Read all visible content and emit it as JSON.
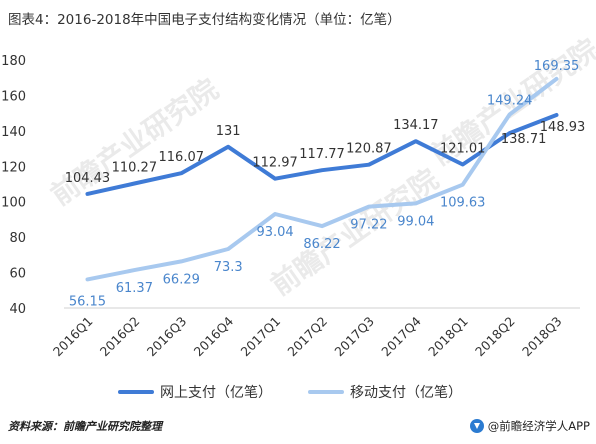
{
  "title": "图表4：2016-2018年中国电子支付结构变化情况（单位：亿笔）",
  "footer": {
    "source": "资料来源：前瞻产业研究院整理",
    "brand": "@前瞻经济学人APP",
    "brand_icon": "qianzhan-logo-icon"
  },
  "watermark": "前瞻产业研究院",
  "colors": {
    "online": "#3f7bd6",
    "mobile": "#a8c9ef",
    "label_online": "#333333",
    "label_mobile": "#4a86cc"
  },
  "chart_data": {
    "type": "line",
    "categories": [
      "2016Q1",
      "2016Q2",
      "2016Q3",
      "2016Q4",
      "2017Q1",
      "2017Q2",
      "2017Q3",
      "2017Q4",
      "2018Q1",
      "2018Q2",
      "2018Q3"
    ],
    "series": [
      {
        "name": "网上支付（亿笔）",
        "values": [
          104.43,
          110.27,
          116.07,
          131,
          112.97,
          117.77,
          120.87,
          134.17,
          121.01,
          138.71,
          148.93
        ],
        "labels": [
          "104.43",
          "110.27",
          "116.07",
          "131",
          "112.97",
          "117.77",
          "120.87",
          "134.17",
          "121.01",
          "138.71",
          "148.93"
        ]
      },
      {
        "name": "移动支付（亿笔）",
        "values": [
          56.15,
          61.37,
          66.29,
          73.3,
          93.04,
          86.22,
          97.22,
          99.04,
          109.63,
          149.24,
          169.35
        ],
        "labels": [
          "56.15",
          "61.37",
          "66.29",
          "73.3",
          "93.04",
          "86.22",
          "97.22",
          "99.04",
          "109.63",
          "149.24",
          "169.35"
        ]
      }
    ],
    "yticks": [
      "40",
      "60",
      "80",
      "100",
      "120",
      "140",
      "160",
      "180"
    ],
    "ylim": [
      40,
      180
    ],
    "grid": false,
    "legend": "bottom"
  }
}
